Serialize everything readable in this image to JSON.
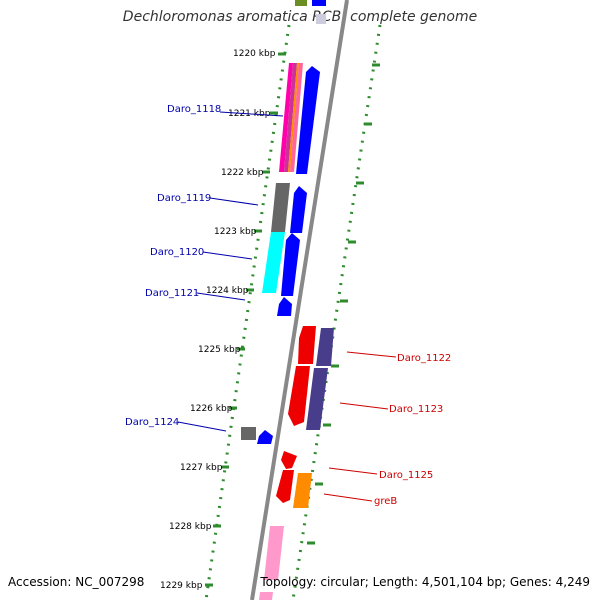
{
  "title": "Dechloromonas aromatica RCB, complete genome",
  "footer": {
    "accession": "Accession: NC_007298",
    "summary": "Topology: circular; Length: 4,501,104 bp; Genes: 4,249"
  },
  "colors": {
    "backbone": "#888888",
    "tick_marks": "#2e8b2e",
    "label_left": "#0000aa",
    "label_right": "#cc0000",
    "gene_blue": "#0000ff",
    "gene_red": "#ee0000",
    "gene_purple": "#483d8b",
    "gene_cyan": "#00ffff",
    "gene_gray": "#666666",
    "gene_orange": "#ff8c00",
    "gene_pink": "#ff99cc"
  },
  "ticks": [
    "1220 kbp",
    "1221 kbp",
    "1222 kbp",
    "1223 kbp",
    "1224 kbp",
    "1225 kbp",
    "1226 kbp",
    "1227 kbp",
    "1228 kbp",
    "1229 kbp"
  ],
  "left_labels": [
    "Daro_1118",
    "Daro_1119",
    "Daro_1120",
    "Daro_1121",
    "Daro_1124"
  ],
  "right_labels": [
    "Daro_1122",
    "Daro_1123",
    "Daro_1125",
    "greB"
  ]
}
